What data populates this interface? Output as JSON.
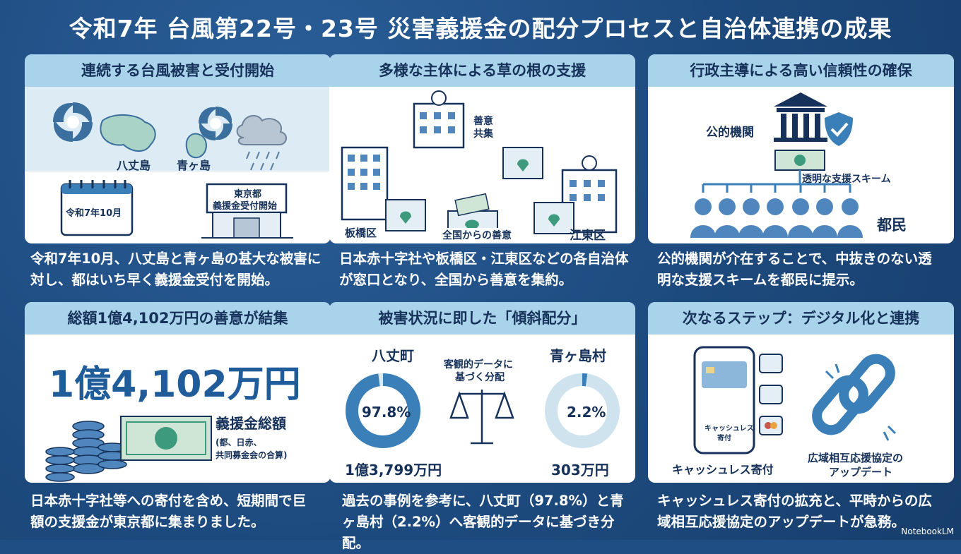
{
  "title": "令和7年 台風第22号・23号 災害義援金の配分プロセスと自治体連携の成果",
  "cards": [
    {
      "heading": "連続する台風被害と受付開始",
      "labels": {
        "island1": "八丈島",
        "island2": "青ヶ島",
        "calendar": "令和7年10月",
        "sign_line1": "東京都",
        "sign_line2": "義援金受付開始"
      },
      "caption": "令和7年10月、八丈島と青ヶ島の甚大な被害に対し、都はいち早く義援金受付を開始。"
    },
    {
      "heading": "多様な主体による草の根の支援",
      "labels": {
        "center_line1": "善意",
        "center_line2": "共集",
        "left": "板橋区",
        "right": "江東区",
        "bottom": "全国からの善意"
      },
      "caption": "日本赤十字社や板橋区・江東区などの各自治体が窓口となり、全国から善意を集約。"
    },
    {
      "heading": "行政主導による高い信頼性の確保",
      "labels": {
        "org": "公的機関",
        "scheme": "透明な支援スキーム",
        "citizens": "都民"
      },
      "caption": "公的機関が介在することで、中抜きのない透明な支援スキームを都民に提示。"
    },
    {
      "heading": "総額1億4,102万円の善意が結集",
      "labels": {
        "total": "1億4,102万円",
        "total_label": "義援金総額",
        "note_line1": "(都、日赤、",
        "note_line2": "共同募金会の合算)"
      },
      "caption": "日本赤十字社等への寄付を含め、短期間で巨額の支援金が東京都に集まりました。"
    },
    {
      "heading": "被害状況に即した「傾斜配分」",
      "labels": {
        "left_name": "八丈町",
        "left_pct": "97.8%",
        "left_amount": "1億3,799万円",
        "center_line1": "客観的データに",
        "center_line2": "基づく分配",
        "right_name": "青ヶ島村",
        "right_pct": "2.2%",
        "right_amount": "303万円"
      },
      "distribution": {
        "hachijo": 97.8,
        "aogashima": 2.2
      },
      "caption": "過去の事例を参考に、八丈町（97.8%）と青ヶ島村（2.2%）へ客観的データに基づき分配。"
    },
    {
      "heading": "次なるステップ：デジタル化と連携",
      "labels": {
        "phone_text_line1": "キャッシュレス",
        "phone_text_line2": "寄付",
        "cashless": "キャッシュレス寄付",
        "link_line1": "広域相互応援協定の",
        "link_line2": "アップデート"
      },
      "caption": "キャッシュレス寄付の拡充と、平時からの広域相互応援協定のアップデートが急務。"
    }
  ],
  "watermark": "NotebookLM",
  "colors": {
    "background": "#1f4e84",
    "header": "#a9d3ea",
    "accent": "#3a7fb8"
  }
}
